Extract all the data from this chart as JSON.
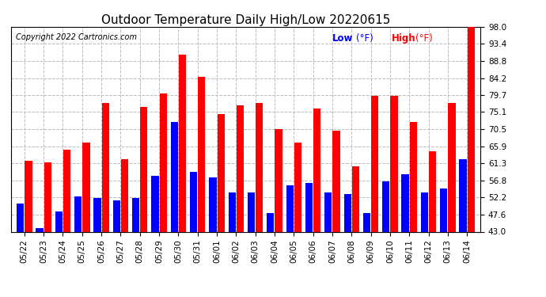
{
  "title": "Outdoor Temperature Daily High/Low 20220615",
  "copyright": "Copyright 2022 Cartronics.com",
  "legend_low_label": "Low",
  "legend_high_label": "High",
  "legend_unit": "(°F)",
  "dates": [
    "05/22",
    "05/23",
    "05/24",
    "05/25",
    "05/26",
    "05/27",
    "05/28",
    "05/29",
    "05/30",
    "05/31",
    "06/01",
    "06/02",
    "06/03",
    "06/04",
    "06/05",
    "06/06",
    "06/07",
    "06/08",
    "06/09",
    "06/10",
    "06/11",
    "06/12",
    "06/13",
    "06/14"
  ],
  "high_values": [
    62.0,
    61.5,
    65.0,
    67.0,
    77.5,
    62.5,
    76.5,
    80.0,
    90.5,
    84.5,
    74.5,
    77.0,
    77.5,
    70.5,
    67.0,
    76.0,
    70.0,
    60.5,
    79.5,
    79.5,
    72.5,
    64.5,
    77.5,
    98.0
  ],
  "low_values": [
    50.5,
    44.0,
    48.5,
    52.5,
    52.0,
    51.5,
    52.0,
    58.0,
    72.5,
    59.0,
    57.5,
    53.5,
    53.5,
    48.0,
    55.5,
    56.0,
    53.5,
    53.0,
    48.0,
    56.5,
    58.5,
    53.5,
    54.5,
    62.5
  ],
  "high_color": "#ff0000",
  "low_color": "#0000ff",
  "background_color": "#ffffff",
  "grid_color": "#bbbbbb",
  "title_fontsize": 11,
  "copyright_fontsize": 7,
  "tick_fontsize": 7.5,
  "legend_fontsize": 8.5,
  "ylim": [
    43.0,
    98.0
  ],
  "yticks": [
    43.0,
    47.6,
    52.2,
    56.8,
    61.3,
    65.9,
    70.5,
    75.1,
    79.7,
    84.2,
    88.8,
    93.4,
    98.0
  ],
  "bar_width": 0.38,
  "bar_gap": 0.04,
  "figwidth": 6.9,
  "figheight": 3.75,
  "dpi": 100
}
